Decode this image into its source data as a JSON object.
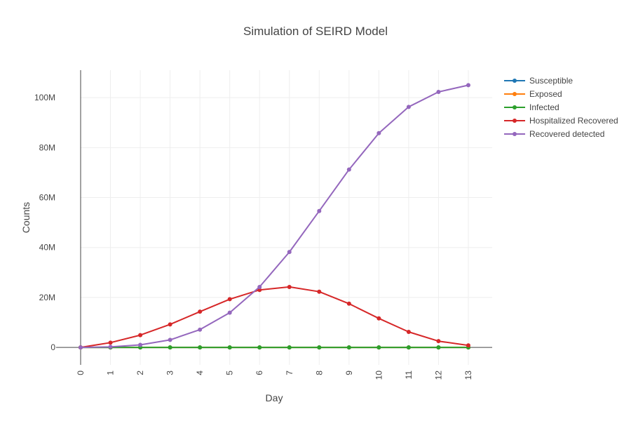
{
  "chart_data": {
    "type": "line",
    "title": "Simulation of SEIRD Model",
    "xlabel": "Day",
    "ylabel": "Counts",
    "x": [
      0,
      1,
      2,
      3,
      4,
      5,
      6,
      7,
      8,
      9,
      10,
      11,
      12,
      13
    ],
    "x_tick_labels": [
      "0",
      "1",
      "2",
      "3",
      "4",
      "5",
      "6",
      "7",
      "8",
      "9",
      "10",
      "11",
      "12",
      "13"
    ],
    "xlim": [
      0,
      13.8
    ],
    "ylim": [
      -7000000,
      111000000
    ],
    "y_ticks": [
      0,
      20000000,
      40000000,
      60000000,
      80000000,
      100000000
    ],
    "y_tick_labels": [
      "0",
      "20M",
      "40M",
      "60M",
      "80M",
      "100M"
    ],
    "grid": true,
    "legend_position": "top-right",
    "series": [
      {
        "name": "Susceptible",
        "color": "#1f77b4",
        "values": [
          0,
          0,
          0,
          0,
          0,
          0,
          0,
          0,
          0,
          0,
          0,
          0,
          0,
          0
        ]
      },
      {
        "name": "Exposed",
        "color": "#ff7f0e",
        "values": [
          0,
          0,
          0,
          0,
          0,
          0,
          0,
          0,
          0,
          0,
          0,
          0,
          0,
          0
        ]
      },
      {
        "name": "Infected",
        "color": "#2ca02c",
        "values": [
          0,
          0,
          0,
          0,
          0,
          0,
          0,
          0,
          0,
          0,
          0,
          0,
          0,
          0
        ]
      },
      {
        "name": "Hospitalized Recovered",
        "color": "#d62728",
        "values": [
          0,
          1900000,
          4900000,
          9200000,
          14300000,
          19300000,
          23000000,
          24200000,
          22300000,
          17500000,
          11600000,
          6200000,
          2500000,
          800000
        ]
      },
      {
        "name": "Recovered detected",
        "color": "#9467bd",
        "values": [
          0,
          200000,
          1000000,
          3000000,
          7100000,
          13900000,
          24200000,
          38200000,
          54600000,
          71200000,
          85800000,
          96300000,
          102300000,
          105000000
        ]
      }
    ]
  }
}
